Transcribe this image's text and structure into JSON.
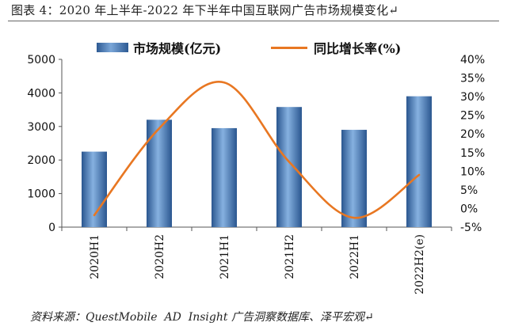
{
  "title": "图表 4：2020 年上半年-2022 年下半年中国互联网广告市场规模变化↵",
  "source": "资料来源：QuestMobile  AD  Insight 广告洞察数据库、泽平宏观↵",
  "chart_data": {
    "type": "bar",
    "categories": [
      "2020H1",
      "2020H2",
      "2021H1",
      "2021H2",
      "2022H1",
      "2022H2(e)"
    ],
    "series": [
      {
        "name": "市场规模(亿元)",
        "type": "bar",
        "axis": "left",
        "values": [
          2250,
          3200,
          2950,
          3580,
          2900,
          3900
        ],
        "color": "#3a6aa6"
      },
      {
        "name": "同比增长率(%)",
        "type": "line",
        "axis": "right",
        "values": [
          -1.8,
          21.5,
          33.8,
          12.5,
          -2.5,
          9.0
        ],
        "color": "#e87722"
      }
    ],
    "ylim_left": [
      0,
      5000
    ],
    "yticks_left": [
      "0",
      "1000",
      "2000",
      "3000",
      "4000",
      "5000"
    ],
    "ylim_right": [
      -5,
      40
    ],
    "yticks_right": [
      "-5%",
      "0%",
      "5%",
      "10%",
      "15%",
      "20%",
      "25%",
      "30%",
      "35%",
      "40%"
    ],
    "legend_position": "top",
    "grid": false
  }
}
